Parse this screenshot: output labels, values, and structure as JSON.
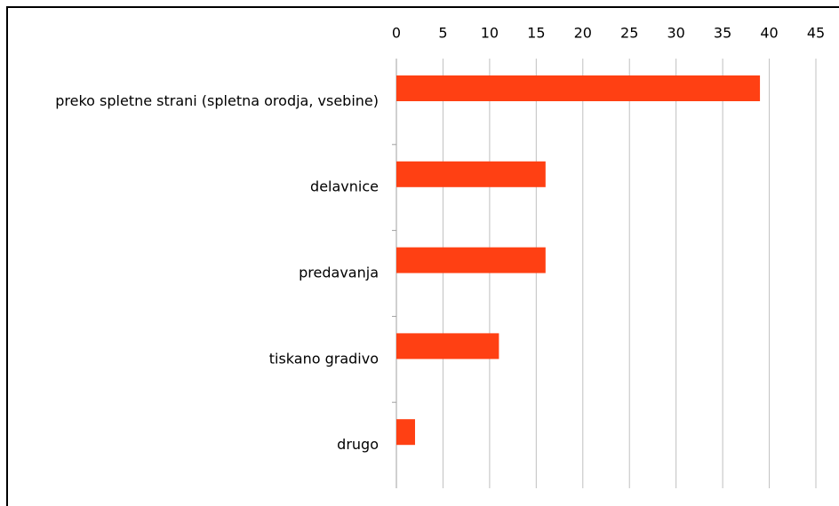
{
  "chart_data": {
    "type": "hbar",
    "categories": [
      "preko spletne strani (spletna orodja, vsebine)",
      "delavnice",
      "predavanja",
      "tiskano gradivo",
      "drugo"
    ],
    "values": [
      39,
      16,
      16,
      11,
      2
    ],
    "color": "#ff4013",
    "xlim": [
      0,
      45
    ],
    "xticks": [
      0,
      5,
      10,
      15,
      20,
      25,
      30,
      35,
      40,
      45
    ],
    "grid": true
  }
}
